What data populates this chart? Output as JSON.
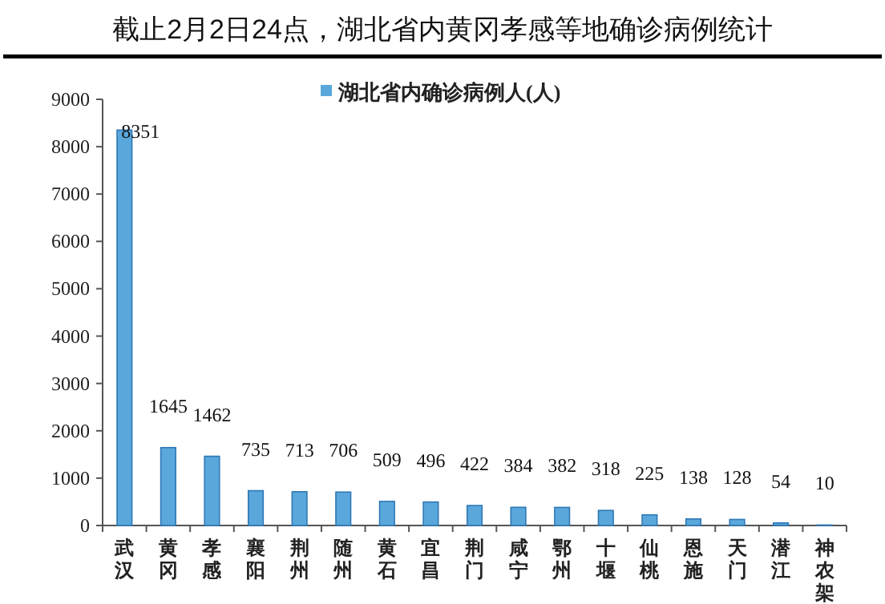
{
  "chart_data": {
    "type": "bar",
    "title": "截止2月2日24点，湖北省内黄冈孝感等地确诊病例统计",
    "categories": [
      "武汉",
      "黄冈",
      "孝感",
      "襄阳",
      "荆州",
      "随州",
      "黄石",
      "宜昌",
      "荆门",
      "咸宁",
      "鄂州",
      "十堰",
      "仙桃",
      "恩施",
      "天门",
      "潜江",
      "神农架"
    ],
    "series": [
      {
        "name": "湖北省内确诊病例人(人)",
        "color": "#5aa7dc",
        "values": [
          8351,
          1645,
          1462,
          735,
          713,
          706,
          509,
          496,
          422,
          384,
          382,
          318,
          225,
          138,
          128,
          54,
          10
        ]
      }
    ],
    "ylim": [
      0,
      9000
    ],
    "yticks": [
      0,
      1000,
      2000,
      3000,
      4000,
      5000,
      6000,
      7000,
      8000,
      9000
    ],
    "data_labels": true,
    "legend": "top",
    "grid": false
  }
}
